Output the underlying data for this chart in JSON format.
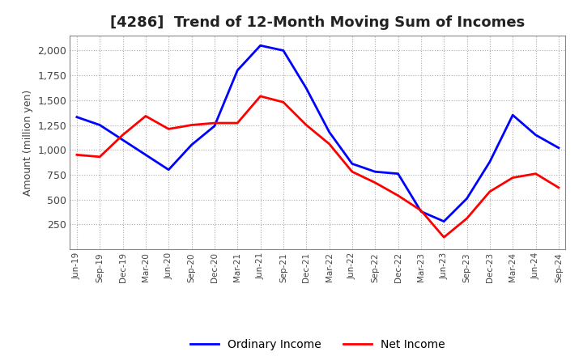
{
  "title": "[4286]  Trend of 12-Month Moving Sum of Incomes",
  "ylabel": "Amount (million yen)",
  "ylim": [
    0,
    2150
  ],
  "yticks": [
    250,
    500,
    750,
    1000,
    1250,
    1500,
    1750,
    2000
  ],
  "x_labels": [
    "Jun-19",
    "Sep-19",
    "Dec-19",
    "Mar-20",
    "Jun-20",
    "Sep-20",
    "Dec-20",
    "Mar-21",
    "Jun-21",
    "Sep-21",
    "Dec-21",
    "Mar-22",
    "Jun-22",
    "Sep-22",
    "Dec-22",
    "Mar-23",
    "Jun-23",
    "Sep-23",
    "Dec-23",
    "Mar-24",
    "Jun-24",
    "Sep-24"
  ],
  "ordinary_income": [
    1330,
    1250,
    1100,
    950,
    800,
    1050,
    1240,
    1800,
    2050,
    2000,
    1620,
    1180,
    860,
    780,
    760,
    380,
    280,
    510,
    880,
    1350,
    1150,
    1020
  ],
  "net_income": [
    950,
    930,
    1150,
    1340,
    1210,
    1250,
    1270,
    1270,
    1540,
    1480,
    1250,
    1060,
    780,
    670,
    540,
    390,
    120,
    310,
    580,
    720,
    760,
    620
  ],
  "ordinary_color": "#0000ff",
  "net_color": "#ff0000",
  "grid_color": "#aaaaaa",
  "background_color": "#ffffff",
  "title_fontsize": 13,
  "legend_labels": [
    "Ordinary Income",
    "Net Income"
  ]
}
